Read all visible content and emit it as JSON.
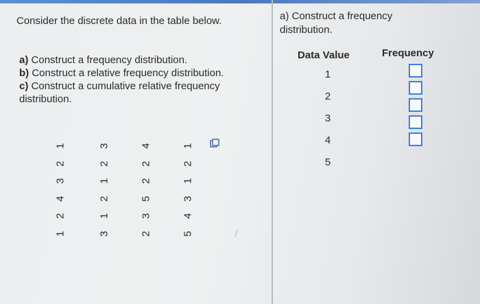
{
  "problem": {
    "intro": "Consider the discrete data in the table below.",
    "parts": [
      {
        "label": "a)",
        "text": "Construct a frequency distribution."
      },
      {
        "label": "b)",
        "text": "Construct a relative frequency distribution."
      },
      {
        "label": "c)",
        "text": "Construct a cumulative relative frequency distribution."
      }
    ],
    "data_columns": [
      [
        "1",
        "2",
        "3",
        "4",
        "2",
        "1"
      ],
      [
        "3",
        "2",
        "1",
        "2",
        "1",
        "3"
      ],
      [
        "4",
        "2",
        "2",
        "5",
        "3",
        "2"
      ],
      [
        "1",
        "2",
        "1",
        "3",
        "4",
        "5"
      ]
    ]
  },
  "answer": {
    "title": "a) Construct a frequency distribution.",
    "header_data_value": "Data Value",
    "header_frequency": "Frequency",
    "data_values": [
      "1",
      "2",
      "3",
      "4",
      "5"
    ],
    "frequencies": [
      "",
      "",
      "",
      "",
      ""
    ]
  }
}
